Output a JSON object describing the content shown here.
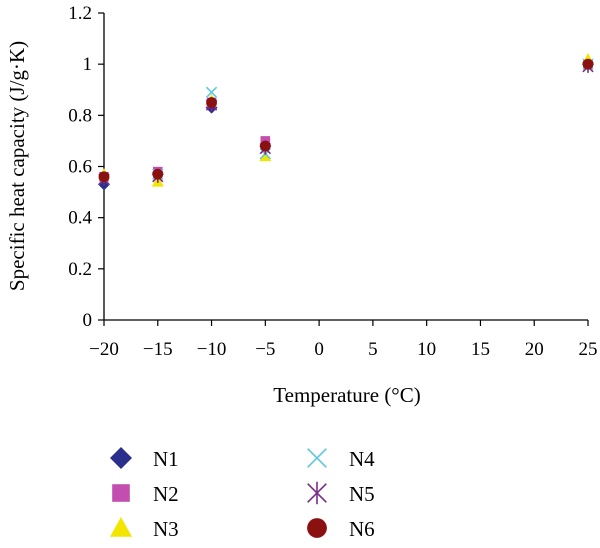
{
  "chart_data": {
    "type": "scatter",
    "title": "",
    "xlabel": "Temperature (°C)",
    "ylabel": "Specific heat capacity (J/g·K)",
    "xlim": [
      -20,
      25
    ],
    "ylim": [
      0,
      1.2
    ],
    "xticks": [
      -20,
      -15,
      -10,
      -5,
      0,
      5,
      10,
      15,
      20,
      25
    ],
    "xtick_labels": [
      "−20",
      "−15",
      "−10",
      "−5",
      "0",
      "5",
      "10",
      "15",
      "20",
      "25"
    ],
    "yticks": [
      0,
      0.2,
      0.4,
      0.6,
      0.8,
      1,
      1.2
    ],
    "ytick_labels": [
      "0",
      "0.2",
      "0.4",
      "0.6",
      "0.8",
      "1",
      "1.2"
    ],
    "grid": false,
    "legend_position": "bottom",
    "series": [
      {
        "name": "N1",
        "marker": "diamond",
        "color": "#2b2f8c",
        "points": [
          [
            -20,
            0.53
          ],
          [
            -15,
            0.57
          ],
          [
            -10,
            0.83
          ],
          [
            -5,
            0.68
          ],
          [
            25,
            1.0
          ]
        ]
      },
      {
        "name": "N2",
        "marker": "square",
        "color": "#c24fb0",
        "points": [
          [
            -20,
            0.56
          ],
          [
            -15,
            0.58
          ],
          [
            -10,
            0.85
          ],
          [
            -5,
            0.7
          ],
          [
            25,
            1.0
          ]
        ]
      },
      {
        "name": "N3",
        "marker": "triangle",
        "color": "#f2e600",
        "points": [
          [
            -20,
            0.57
          ],
          [
            -15,
            0.54
          ],
          [
            -10,
            0.86
          ],
          [
            -5,
            0.64
          ],
          [
            25,
            1.02
          ]
        ]
      },
      {
        "name": "N4",
        "marker": "x",
        "color": "#5ec8e0",
        "points": [
          [
            -20,
            0.55
          ],
          [
            -15,
            0.57
          ],
          [
            -10,
            0.89
          ],
          [
            -5,
            0.65
          ],
          [
            25,
            1.0
          ]
        ]
      },
      {
        "name": "N5",
        "marker": "asterisk",
        "color": "#7b2a8c",
        "points": [
          [
            -20,
            0.55
          ],
          [
            -15,
            0.56
          ],
          [
            -10,
            0.84
          ],
          [
            -5,
            0.67
          ],
          [
            25,
            0.99
          ]
        ]
      },
      {
        "name": "N6",
        "marker": "circle",
        "color": "#8b1111",
        "points": [
          [
            -20,
            0.56
          ],
          [
            -15,
            0.57
          ],
          [
            -10,
            0.85
          ],
          [
            -5,
            0.68
          ],
          [
            25,
            1.0
          ]
        ]
      }
    ]
  }
}
